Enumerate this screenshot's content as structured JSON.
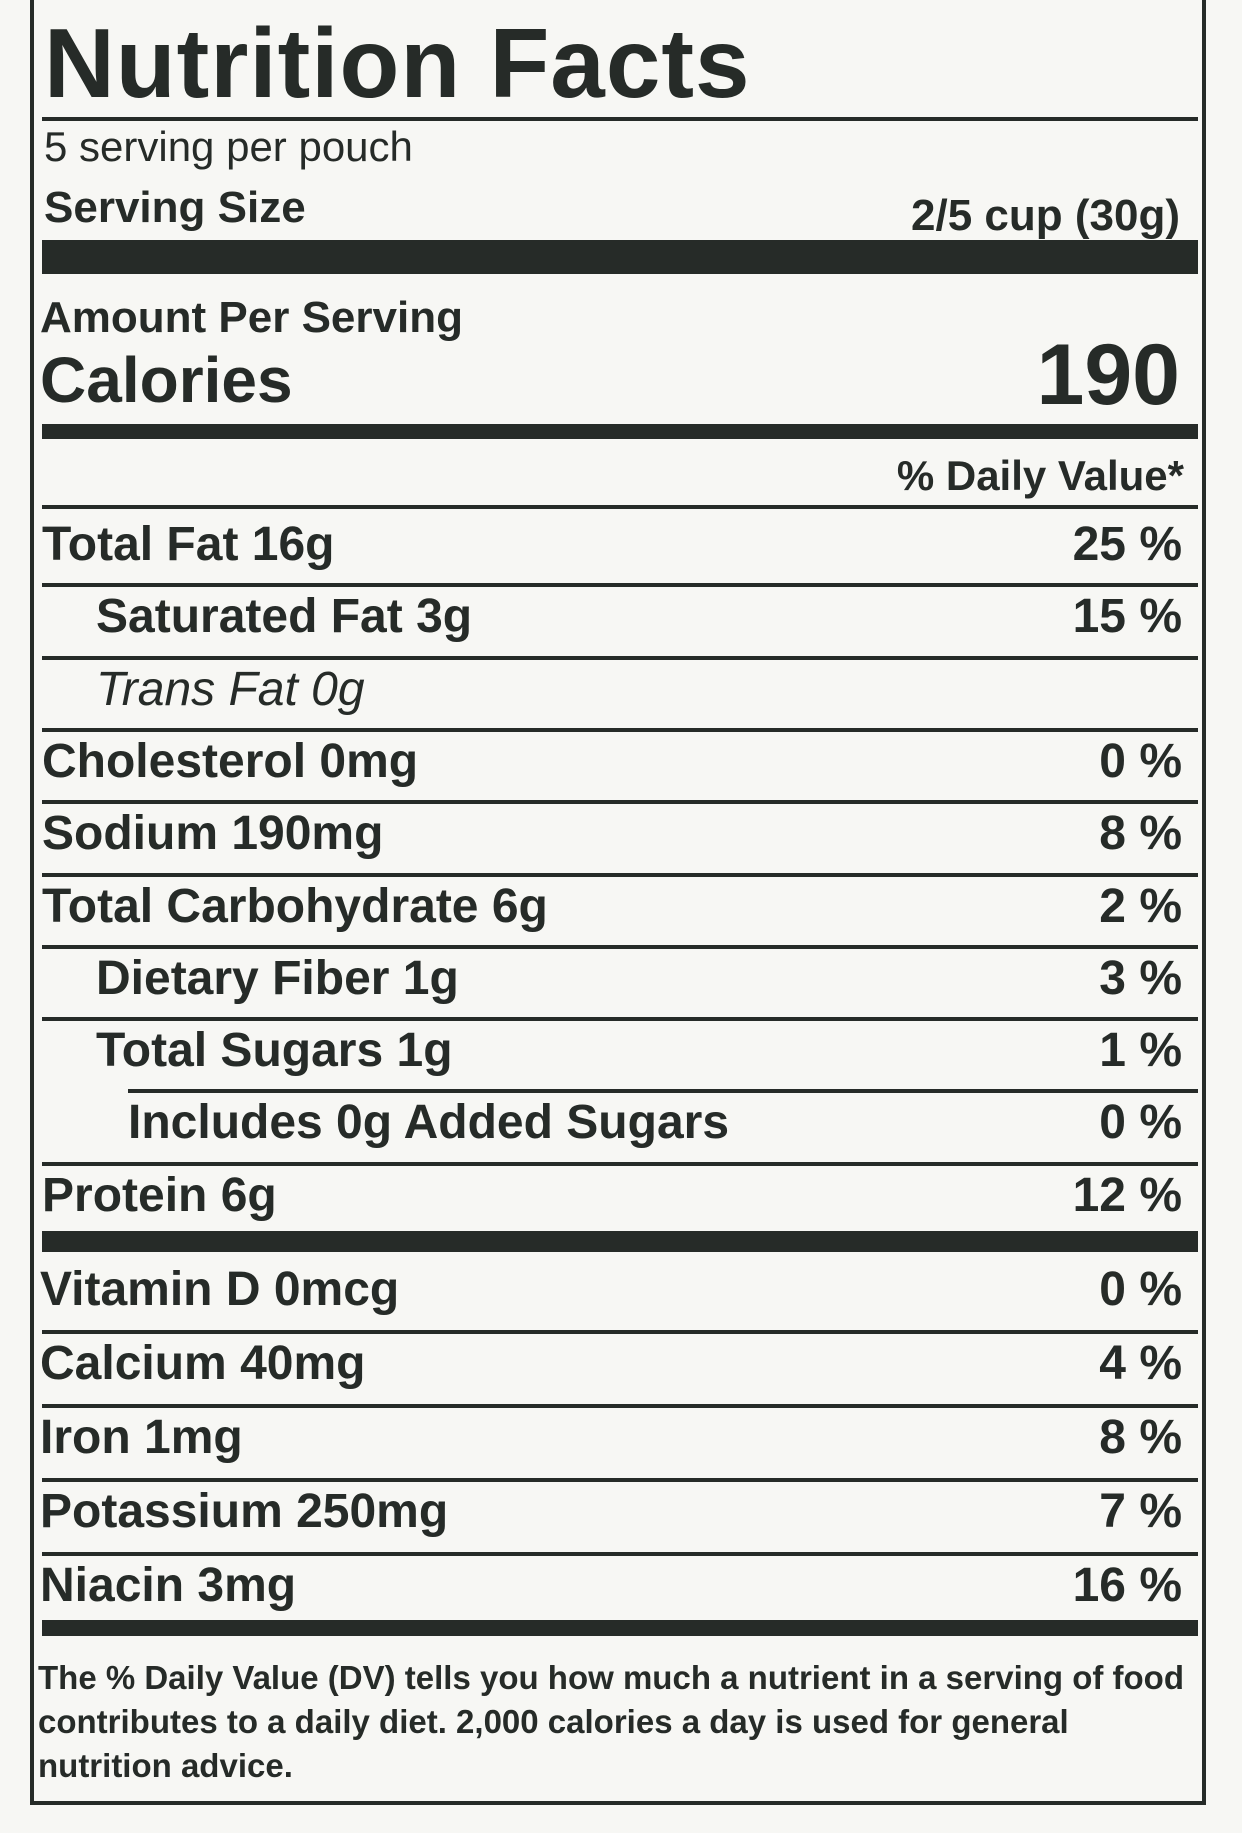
{
  "header": {
    "title": "Nutrition Facts",
    "servings": "5 serving per pouch",
    "serving_size_label": "Serving Size",
    "serving_size": "2/5 cup (30g)"
  },
  "calories": {
    "amount_label": "Amount Per Serving",
    "label": "Calories",
    "value": "190"
  },
  "daily_value_header": "% Daily Value*",
  "nutrients": [
    {
      "name": "Total Fat 16g",
      "daily_value": "25 %"
    },
    {
      "name": "Saturated Fat 3g",
      "daily_value": "15 %"
    },
    {
      "name": "Trans Fat 0g"
    },
    {
      "name": "Cholesterol 0mg",
      "daily_value": "0 %"
    },
    {
      "name": "Sodium 190mg",
      "daily_value": "8 %"
    },
    {
      "name": "Total Carbohydrate 6g",
      "daily_value": "2 %"
    },
    {
      "name": "Dietary Fiber 1g",
      "daily_value": "3 %"
    },
    {
      "name": "Total Sugars 1g",
      "daily_value": "1 %"
    },
    {
      "name": "Includes 0g Added Sugars",
      "daily_value": "0 %"
    },
    {
      "name": "Protein 6g",
      "daily_value": "12 %"
    }
  ],
  "vitamins": [
    {
      "name": "Vitamin D 0mcg",
      "daily_value": "0 %"
    },
    {
      "name": "Calcium 40mg",
      "daily_value": "4 %"
    },
    {
      "name": "Iron 1mg",
      "daily_value": "8 %"
    },
    {
      "name": "Potassium 250mg",
      "daily_value": "7 %"
    },
    {
      "name": "Niacin 3mg",
      "daily_value": "16 %"
    }
  ],
  "footnote": "The % Daily Value (DV) tells you how much a nutrient in a serving of food contributes to a daily diet. 2,000 calories a day is used for general nutrition advice."
}
